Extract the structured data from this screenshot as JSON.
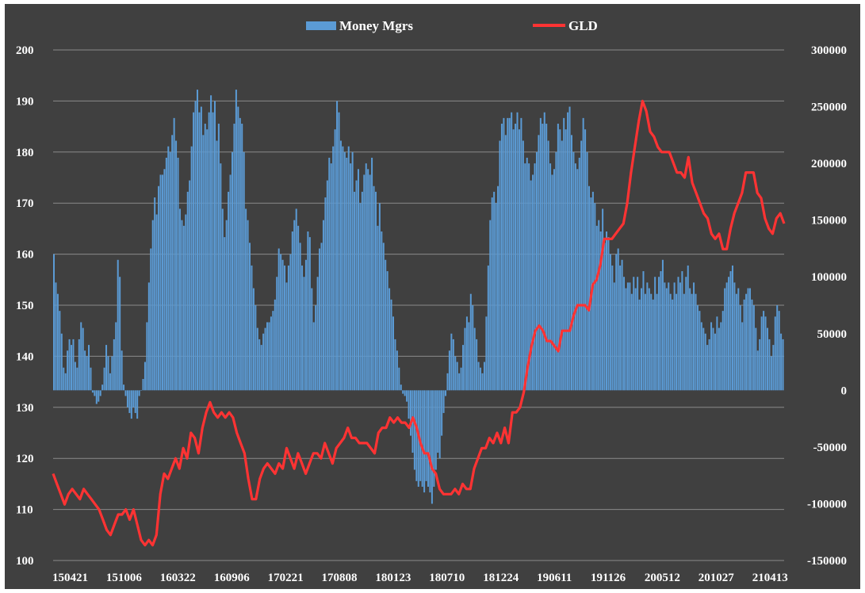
{
  "chart_data": {
    "type": "bar+line",
    "x_tick_labels": [
      "150421",
      "151006",
      "160322",
      "160906",
      "170221",
      "170808",
      "180123",
      "180710",
      "181224",
      "190611",
      "191126",
      "200512",
      "201027",
      "210413"
    ],
    "left_axis": {
      "ticks": [
        "200",
        "190",
        "180",
        "170",
        "160",
        "150",
        "140",
        "130",
        "120",
        "110",
        "100"
      ],
      "range": [
        100,
        200
      ]
    },
    "right_axis": {
      "ticks": [
        "300000",
        "250000",
        "200000",
        "150000",
        "100000",
        "50000",
        "0",
        "-50000",
        "-100000",
        "-150000"
      ],
      "range": [
        -150000,
        300000
      ]
    },
    "legend": {
      "position": "top"
    },
    "series": [
      {
        "name": "Money Mgrs",
        "type": "bar",
        "axis": "right",
        "color": "#5B9BD5",
        "note_points": "weekly values estimated; 2015-04 to 2021-09",
        "values": [
          120000,
          95000,
          85000,
          70000,
          50000,
          20000,
          15000,
          35000,
          45000,
          40000,
          45000,
          25000,
          20000,
          45000,
          60000,
          55000,
          35000,
          30000,
          40000,
          20000,
          -2000,
          -5000,
          -12000,
          -10000,
          -5000,
          5000,
          20000,
          40000,
          30000,
          15000,
          30000,
          45000,
          60000,
          115000,
          100000,
          35000,
          5000,
          -5000,
          -15000,
          -20000,
          -25000,
          -15000,
          -20000,
          -25000,
          -5000,
          0,
          10000,
          25000,
          60000,
          95000,
          125000,
          150000,
          170000,
          155000,
          180000,
          190000,
          190000,
          195000,
          205000,
          215000,
          210000,
          225000,
          240000,
          220000,
          205000,
          160000,
          150000,
          145000,
          155000,
          175000,
          185000,
          215000,
          245000,
          255000,
          265000,
          245000,
          250000,
          225000,
          235000,
          230000,
          245000,
          260000,
          245000,
          255000,
          220000,
          235000,
          200000,
          160000,
          135000,
          150000,
          175000,
          190000,
          210000,
          235000,
          265000,
          250000,
          240000,
          235000,
          210000,
          160000,
          150000,
          130000,
          110000,
          90000,
          75000,
          55000,
          45000,
          40000,
          50000,
          55000,
          60000,
          60000,
          65000,
          70000,
          80000,
          100000,
          125000,
          120000,
          115000,
          110000,
          95000,
          110000,
          120000,
          140000,
          150000,
          160000,
          145000,
          130000,
          110000,
          100000,
          115000,
          140000,
          135000,
          90000,
          60000,
          75000,
          100000,
          125000,
          130000,
          150000,
          170000,
          185000,
          205000,
          200000,
          215000,
          230000,
          255000,
          245000,
          220000,
          215000,
          210000,
          205000,
          215000,
          200000,
          210000,
          175000,
          185000,
          195000,
          165000,
          175000,
          190000,
          200000,
          195000,
          190000,
          205000,
          180000,
          175000,
          145000,
          165000,
          140000,
          130000,
          115000,
          105000,
          90000,
          80000,
          65000,
          45000,
          35000,
          20000,
          5000,
          -3000,
          -5000,
          -10000,
          -25000,
          -40000,
          -55000,
          -70000,
          -80000,
          -85000,
          -80000,
          -85000,
          -90000,
          -80000,
          -85000,
          -90000,
          -100000,
          -85000,
          -70000,
          -55000,
          -60000,
          -40000,
          -20000,
          -5000,
          15000,
          35000,
          50000,
          45000,
          30000,
          25000,
          15000,
          20000,
          40000,
          55000,
          65000,
          60000,
          85000,
          75000,
          55000,
          45000,
          25000,
          20000,
          15000,
          25000,
          65000,
          110000,
          150000,
          170000,
          175000,
          165000,
          180000,
          220000,
          235000,
          240000,
          225000,
          240000,
          240000,
          245000,
          230000,
          235000,
          245000,
          230000,
          240000,
          220000,
          200000,
          205000,
          200000,
          185000,
          190000,
          200000,
          210000,
          225000,
          240000,
          235000,
          245000,
          235000,
          220000,
          200000,
          190000,
          195000,
          210000,
          235000,
          230000,
          220000,
          240000,
          230000,
          245000,
          250000,
          225000,
          210000,
          200000,
          195000,
          205000,
          220000,
          240000,
          230000,
          210000,
          180000,
          170000,
          175000,
          165000,
          145000,
          150000,
          140000,
          160000,
          130000,
          140000,
          135000,
          120000,
          110000,
          95000,
          120000,
          125000,
          110000,
          115000,
          100000,
          90000,
          95000,
          95000,
          85000,
          100000,
          90000,
          100000,
          80000,
          90000,
          105000,
          85000,
          95000,
          90000,
          85000,
          80000,
          100000,
          85000,
          100000,
          105000,
          115000,
          95000,
          90000,
          95000,
          85000,
          80000,
          95000,
          85000,
          100000,
          95000,
          105000,
          85000,
          100000,
          110000,
          90000,
          85000,
          95000,
          85000,
          75000,
          70000,
          60000,
          55000,
          50000,
          40000,
          45000,
          60000,
          55000,
          50000,
          65000,
          55000,
          60000,
          70000,
          90000,
          95000,
          100000,
          105000,
          110000,
          95000,
          85000,
          90000,
          75000,
          60000,
          80000,
          85000,
          90000,
          90000,
          80000,
          75000,
          55000,
          35000,
          45000,
          65000,
          70000,
          65000,
          55000,
          45000,
          30000,
          40000,
          65000,
          75000,
          70000,
          50000,
          45000
        ]
      },
      {
        "name": "GLD",
        "type": "line",
        "axis": "left",
        "color": "#FF3333",
        "note_points": "values estimated at evenly spaced dates across the same range",
        "values": [
          117,
          115,
          113,
          111,
          113,
          114,
          113,
          112,
          114,
          113,
          112,
          111,
          110,
          108,
          106,
          105,
          107,
          109,
          109,
          110,
          108,
          110,
          107,
          104,
          103,
          104,
          103,
          105,
          113,
          117,
          116,
          118,
          120,
          118,
          122,
          120,
          125,
          124,
          121,
          126,
          129,
          131,
          129,
          128,
          129,
          128,
          129,
          128,
          125,
          123,
          121,
          116,
          112,
          112,
          116,
          118,
          119,
          118,
          117,
          119,
          118,
          122,
          120,
          118,
          121,
          119,
          117,
          119,
          121,
          121,
          120,
          123,
          121,
          119,
          122,
          123,
          124,
          126,
          124,
          124,
          123,
          123,
          123,
          122,
          121,
          125,
          126,
          126,
          128,
          127,
          128,
          127,
          127,
          126,
          128,
          126,
          123,
          121,
          121,
          118,
          117,
          114,
          113,
          113,
          113,
          114,
          113,
          115,
          114,
          114,
          118,
          120,
          122,
          122,
          124,
          123,
          125,
          123,
          126,
          123,
          129,
          129,
          130,
          133,
          138,
          142,
          145,
          146,
          145,
          143,
          143,
          142,
          141,
          145,
          145,
          145,
          148,
          150,
          150,
          150,
          149,
          154,
          155,
          158,
          163,
          163,
          163,
          164,
          165,
          166,
          170,
          176,
          181,
          186,
          190,
          188,
          184,
          183,
          181,
          180,
          180,
          180,
          178,
          176,
          176,
          175,
          179,
          174,
          172,
          170,
          168,
          167,
          164,
          163,
          164,
          161,
          161,
          165,
          168,
          170,
          172,
          176,
          176,
          176,
          172,
          171,
          167,
          165,
          164,
          167,
          168,
          166
        ]
      }
    ]
  }
}
